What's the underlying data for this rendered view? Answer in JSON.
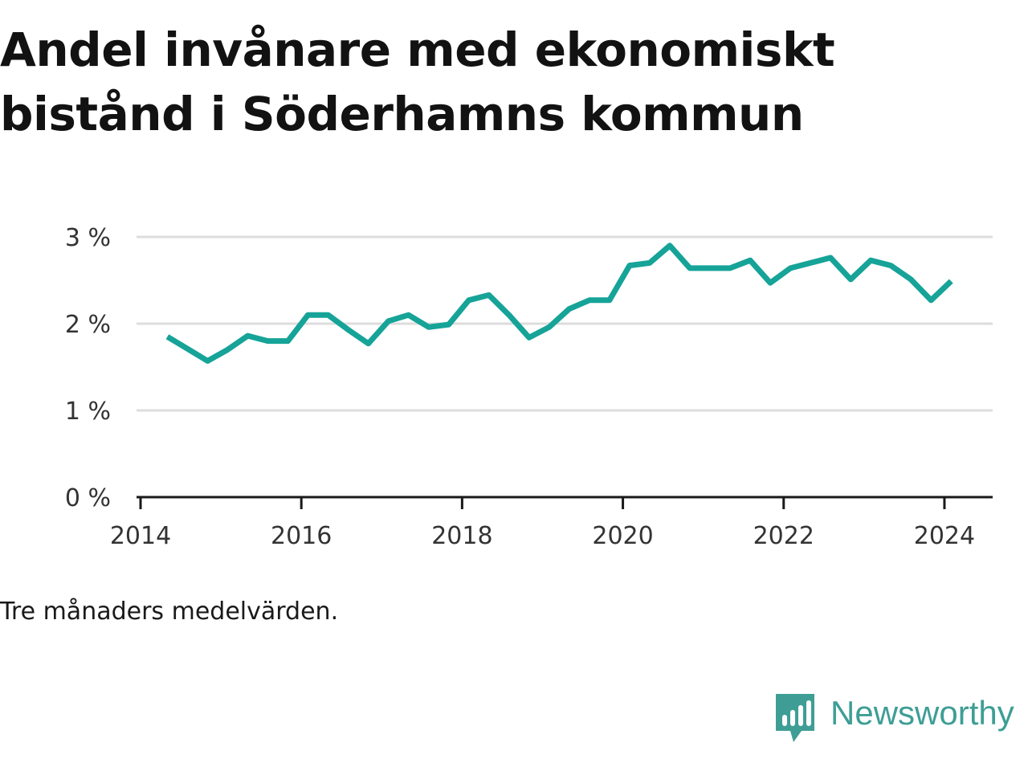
{
  "title": "Andel invånare med ekonomiskt bistånd i Söderhamns kommun",
  "note": "Tre månaders medelvärden.",
  "brand": {
    "name": "Newsworthy",
    "icon": "newsworthy-logo-icon",
    "color": "#3e9e95"
  },
  "chart_data": {
    "type": "line",
    "title": "Andel invånare med ekonomiskt bistånd i Söderhamns kommun",
    "xlabel": "",
    "ylabel": "",
    "x_ticks": [
      "2014",
      "2016",
      "2018",
      "2020",
      "2022",
      "2024"
    ],
    "y_ticks": [
      "0 %",
      "1 %",
      "2 %",
      "3 %"
    ],
    "xlim": [
      2013.95,
      2024.6
    ],
    "ylim": [
      0,
      3
    ],
    "grid": true,
    "legend": "none",
    "line_color": "#16a398",
    "series": [
      {
        "x": [
          "2014-05",
          "2014-08",
          "2014-11",
          "2015-02",
          "2015-05",
          "2015-08",
          "2015-11",
          "2016-02",
          "2016-05",
          "2016-08",
          "2016-11",
          "2017-02",
          "2017-05",
          "2017-08",
          "2017-11",
          "2018-02",
          "2018-05",
          "2018-08",
          "2018-11",
          "2019-02",
          "2019-05",
          "2019-08",
          "2019-11",
          "2020-02",
          "2020-05",
          "2020-08",
          "2020-11",
          "2021-02",
          "2021-05",
          "2021-08",
          "2021-11",
          "2022-02",
          "2022-05",
          "2022-08",
          "2022-11",
          "2023-02",
          "2023-05",
          "2023-08",
          "2023-11",
          "2024-02"
        ],
        "values": [
          1.85,
          1.71,
          1.57,
          1.7,
          1.86,
          1.8,
          1.8,
          2.1,
          2.1,
          1.93,
          1.77,
          2.03,
          2.1,
          1.96,
          1.99,
          2.27,
          2.33,
          2.1,
          1.84,
          1.96,
          2.17,
          2.27,
          2.27,
          2.67,
          2.7,
          2.9,
          2.64,
          2.64,
          2.64,
          2.73,
          2.47,
          2.64,
          2.7,
          2.76,
          2.51,
          2.73,
          2.67,
          2.51,
          2.27,
          2.49
        ]
      }
    ]
  }
}
